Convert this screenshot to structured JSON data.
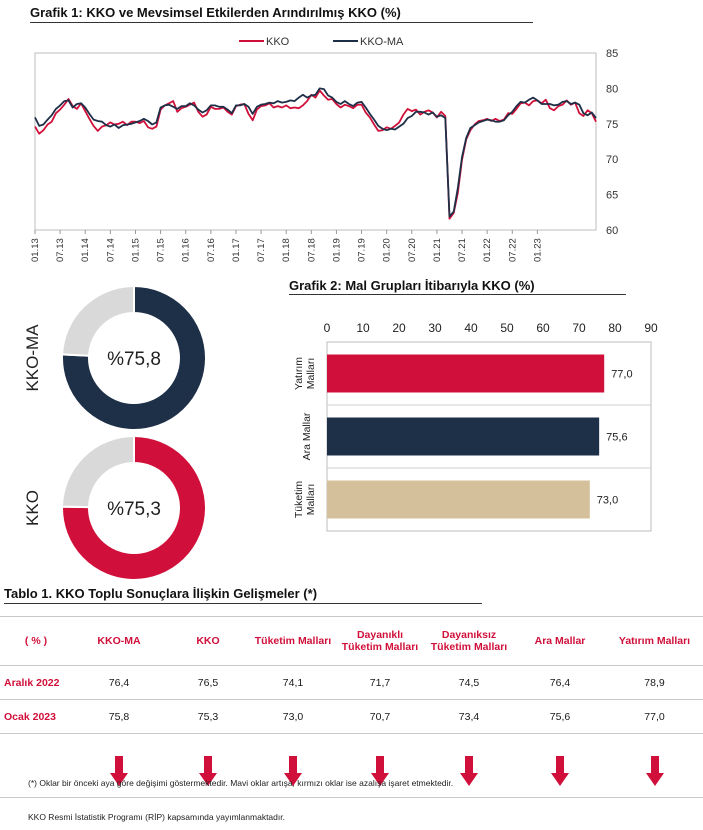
{
  "chart1": {
    "title": "Grafik 1: KKO ve Mevsimsel Etkilerden Arındırılmış KKO (%)",
    "legend": [
      "KKO",
      "KKO-MA"
    ],
    "y_ticks": [
      "85",
      "80",
      "75",
      "70",
      "65",
      "60"
    ],
    "x_ticks": [
      "01.13",
      "07.13",
      "01.14",
      "07.14",
      "01.15",
      "07.15",
      "01.16",
      "07.16",
      "01.17",
      "07.17",
      "01.18",
      "07.18",
      "01.19",
      "07.19",
      "01.20",
      "07.20",
      "01.21",
      "07.21",
      "01.22",
      "07.22",
      "01.23"
    ]
  },
  "donuts": [
    {
      "label": "KKO-MA",
      "value_text": "%75,8",
      "value": 75.8,
      "color": "#1e2f48"
    },
    {
      "label": "KKO",
      "value_text": "%75,3",
      "value": 75.3,
      "color": "#d0103a"
    }
  ],
  "chart2": {
    "title": "Grafik 2: Mal Grupları İtibarıyla KKO (%)",
    "x_ticks": [
      "0",
      "10",
      "20",
      "30",
      "40",
      "50",
      "60",
      "70",
      "80",
      "90"
    ],
    "bars": [
      {
        "label1": "Yatırım",
        "label2": "Malları",
        "value": 77.0,
        "value_text": "77,0",
        "color": "#d0103a"
      },
      {
        "label1": "Ara Mallar",
        "label2": "",
        "value": 75.6,
        "value_text": "75,6",
        "color": "#1e2f48"
      },
      {
        "label1": "Tüketim",
        "label2": "Malları",
        "value": 73.0,
        "value_text": "73,0",
        "color": "#d4c19c"
      }
    ]
  },
  "table": {
    "title": "Tablo 1. KKO Toplu Sonuçlara İlişkin Gelişmeler (*)",
    "headers": [
      {
        "l1": "( % )",
        "l2": ""
      },
      {
        "l1": "KKO-MA",
        "l2": ""
      },
      {
        "l1": "KKO",
        "l2": ""
      },
      {
        "l1": "Tüketim Malları",
        "l2": ""
      },
      {
        "l1": "Dayanıklı",
        "l2": "Tüketim Malları"
      },
      {
        "l1": "Dayanıksız",
        "l2": "Tüketim Malları"
      },
      {
        "l1": "Ara Mallar",
        "l2": ""
      },
      {
        "l1": "Yatırım Malları",
        "l2": ""
      }
    ],
    "rows": [
      {
        "label": "Aralık 2022",
        "values": [
          "76,4",
          "76,5",
          "74,1",
          "71,7",
          "74,5",
          "76,4",
          "78,9"
        ]
      },
      {
        "label": "Ocak 2023",
        "values": [
          "75,8",
          "75,3",
          "73,0",
          "70,7",
          "73,4",
          "75,6",
          "77,0"
        ]
      }
    ],
    "arrow_direction": "down",
    "arrow_color": "#d0103a"
  },
  "footnote1": "(*) Oklar bir önceki aya göre değişimi göstermektedir. Mavi oklar artışa, kırmızı oklar ise azalışa işaret etmektedir.",
  "footnote2": "KKO Resmi İstatistik Programı (RİP) kapsamında yayımlanmaktadır.",
  "chart_data": [
    {
      "type": "line",
      "title": "Grafik 1: KKO ve Mevsimsel Etkilerden Arındırılmış KKO (%)",
      "xlabel": "",
      "ylabel": "",
      "ylim": [
        60,
        85
      ],
      "x_start": "01.13",
      "x_end": "01.23",
      "frequency": "monthly",
      "legend_position": "top",
      "series": [
        {
          "name": "KKO",
          "color": "#d0103a",
          "values": [
            74.6,
            73.6,
            74.1,
            74.9,
            75.3,
            76.5,
            77.0,
            77.7,
            78.5,
            77.5,
            77.1,
            77.9,
            76.8,
            75.7,
            74.7,
            74.0,
            74.6,
            74.8,
            75.2,
            74.9,
            75.0,
            75.3,
            74.8,
            75.3,
            75.3,
            75.1,
            75.4,
            74.5,
            74.3,
            74.6,
            77.0,
            77.6,
            77.9,
            78.2,
            76.7,
            77.2,
            77.4,
            77.7,
            78.0,
            76.7,
            76.0,
            76.3,
            77.4,
            77.1,
            77.1,
            77.3,
            76.7,
            76.3,
            77.5,
            77.7,
            77.8,
            76.4,
            75.5,
            77.0,
            77.5,
            77.6,
            77.9,
            77.3,
            77.5,
            77.3,
            77.6,
            77.2,
            77.3,
            77.2,
            77.6,
            78.2,
            79.1,
            78.7,
            79.7,
            79.0,
            78.4,
            78.5,
            77.8,
            77.3,
            77.7,
            77.5,
            77.2,
            77.7,
            77.7,
            76.6,
            75.9,
            74.9,
            74.0,
            74.1,
            74.5,
            74.3,
            74.7,
            75.2,
            76.3,
            77.1,
            76.8,
            77.0,
            76.3,
            76.7,
            76.9,
            76.6,
            75.9,
            76.7,
            76.1,
            61.6,
            62.4,
            65.2,
            69.9,
            72.8,
            74.1,
            74.9,
            75.4,
            75.5,
            75.7,
            75.4,
            75.7,
            75.4,
            75.6,
            76.5,
            76.4,
            77.1,
            77.9,
            78.0,
            77.6,
            78.2,
            78.3,
            77.9,
            78.4,
            77.2,
            76.9,
            77.5,
            77.7,
            78.3,
            77.7,
            78.0,
            76.5,
            76.1,
            76.9,
            76.5,
            75.3
          ]
        },
        {
          "name": "KKO-MA",
          "color": "#1e2f48",
          "values": [
            75.9,
            74.7,
            74.9,
            75.6,
            76.2,
            77.1,
            77.6,
            78.2,
            78.3,
            77.3,
            77.8,
            77.9,
            77.3,
            76.4,
            75.6,
            75.4,
            75.3,
            74.8,
            74.6,
            74.9,
            74.4,
            74.8,
            74.9,
            75.0,
            75.2,
            75.4,
            75.7,
            75.4,
            74.9,
            75.2,
            77.3,
            77.6,
            77.7,
            77.4,
            77.1,
            77.5,
            77.5,
            77.9,
            77.6,
            77.0,
            76.6,
            76.9,
            77.6,
            77.6,
            77.4,
            77.4,
            77.0,
            76.5,
            77.6,
            77.6,
            77.8,
            77.4,
            76.4,
            77.4,
            77.7,
            77.8,
            78.0,
            77.9,
            78.2,
            78.0,
            78.1,
            78.3,
            78.2,
            78.7,
            79.1,
            78.7,
            79.0,
            79.1,
            80.0,
            79.9,
            79.0,
            78.7,
            78.1,
            77.8,
            78.2,
            77.8,
            77.5,
            78.0,
            78.1,
            77.3,
            76.4,
            75.6,
            74.7,
            74.3,
            74.1,
            74.3,
            74.2,
            74.6,
            75.0,
            75.8,
            76.1,
            76.7,
            76.7,
            76.6,
            76.3,
            76.6,
            76.0,
            76.2,
            75.8,
            61.9,
            62.6,
            65.9,
            70.3,
            73.0,
            74.4,
            74.8,
            75.2,
            75.4,
            75.6,
            75.5,
            75.3,
            75.3,
            75.5,
            76.2,
            76.7,
            77.5,
            78.1,
            78.0,
            78.4,
            78.7,
            78.3,
            77.8,
            77.8,
            77.8,
            77.6,
            77.7,
            78.1,
            78.2,
            77.8,
            78.0,
            77.7,
            76.5,
            76.2,
            76.6,
            75.8
          ]
        }
      ]
    },
    {
      "type": "pie",
      "title": "",
      "charts": [
        {
          "label": "KKO-MA",
          "values": [
            75.8,
            24.2
          ]
        },
        {
          "label": "KKO",
          "values": [
            75.3,
            24.7
          ]
        }
      ]
    },
    {
      "type": "bar",
      "orientation": "horizontal",
      "title": "Grafik 2: Mal Grupları İtibarıyla KKO (%)",
      "categories": [
        "Yatırım Malları",
        "Ara Mallar",
        "Tüketim Malları"
      ],
      "values": [
        77.0,
        75.6,
        73.0
      ],
      "xlim": [
        0,
        90
      ],
      "xlabel": "",
      "ylabel": ""
    }
  ]
}
